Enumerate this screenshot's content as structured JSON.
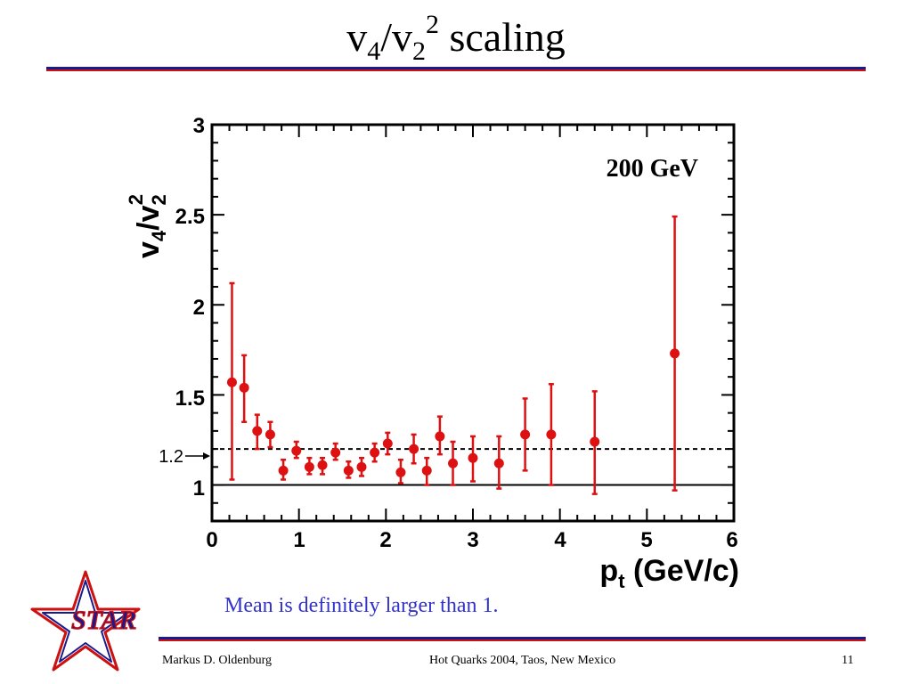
{
  "slide": {
    "title_main": "v",
    "title_sub1": "4",
    "title_mid": "/v",
    "title_sub2": "2",
    "title_sup": "2",
    "title_tail": " scaling",
    "caption": "Mean is definitely larger than 1.",
    "footer_author": "Markus D. Oldenburg",
    "footer_event": "Hot Quarks 2004, Taos, New Mexico",
    "footer_page": "11",
    "logo_text": "STAR",
    "colors": {
      "rule_blue": "#1a1a8c",
      "rule_red": "#cc1111",
      "caption": "#3333cc",
      "data": "#dd1111"
    }
  },
  "chart_data": {
    "type": "scatter",
    "annotation": "200 GeV",
    "reference_label": "1.2",
    "xlabel_main": "p",
    "xlabel_sub": "t",
    "xlabel_tail": " (GeV/c)",
    "ylabel_main": "v",
    "ylabel_sub1": "4",
    "ylabel_mid": "/v",
    "ylabel_sub2": "2",
    "ylabel_sup": "2",
    "xlim": [
      0,
      6
    ],
    "ylim": [
      0.8,
      3.0
    ],
    "x_ticks": [
      0,
      1,
      2,
      3,
      4,
      5,
      6
    ],
    "y_ticks": [
      1,
      1.5,
      2,
      2.5,
      3
    ],
    "y_tick_labels": [
      "1",
      "1.5",
      "2",
      "2.5",
      "3"
    ],
    "reference_lines": [
      {
        "y": 1.0,
        "style": "solid"
      },
      {
        "y": 1.2,
        "style": "dashed"
      }
    ],
    "series": [
      {
        "marker": "filled-circle",
        "points": [
          {
            "x": 0.23,
            "y": 1.57,
            "lo": 1.03,
            "hi": 2.12
          },
          {
            "x": 0.37,
            "y": 1.54,
            "lo": 1.35,
            "hi": 1.72
          },
          {
            "x": 0.52,
            "y": 1.3,
            "lo": 1.2,
            "hi": 1.39
          },
          {
            "x": 0.67,
            "y": 1.28,
            "lo": 1.21,
            "hi": 1.35
          },
          {
            "x": 0.82,
            "y": 1.08,
            "lo": 1.03,
            "hi": 1.14
          },
          {
            "x": 0.97,
            "y": 1.19,
            "lo": 1.15,
            "hi": 1.24
          },
          {
            "x": 1.12,
            "y": 1.1,
            "lo": 1.06,
            "hi": 1.15
          },
          {
            "x": 1.27,
            "y": 1.11,
            "lo": 1.06,
            "hi": 1.15
          },
          {
            "x": 1.42,
            "y": 1.18,
            "lo": 1.14,
            "hi": 1.23
          },
          {
            "x": 1.57,
            "y": 1.08,
            "lo": 1.04,
            "hi": 1.13
          },
          {
            "x": 1.72,
            "y": 1.1,
            "lo": 1.05,
            "hi": 1.15
          },
          {
            "x": 1.87,
            "y": 1.18,
            "lo": 1.13,
            "hi": 1.23
          },
          {
            "x": 2.02,
            "y": 1.23,
            "lo": 1.17,
            "hi": 1.29
          },
          {
            "x": 2.17,
            "y": 1.07,
            "lo": 1.01,
            "hi": 1.14
          },
          {
            "x": 2.32,
            "y": 1.2,
            "lo": 1.12,
            "hi": 1.28
          },
          {
            "x": 2.47,
            "y": 1.08,
            "lo": 1.0,
            "hi": 1.15
          },
          {
            "x": 2.62,
            "y": 1.27,
            "lo": 1.17,
            "hi": 1.38
          },
          {
            "x": 2.77,
            "y": 1.12,
            "lo": 1.0,
            "hi": 1.24
          },
          {
            "x": 3.0,
            "y": 1.15,
            "lo": 1.02,
            "hi": 1.27
          },
          {
            "x": 3.3,
            "y": 1.12,
            "lo": 0.98,
            "hi": 1.27
          },
          {
            "x": 3.6,
            "y": 1.28,
            "lo": 1.08,
            "hi": 1.48
          },
          {
            "x": 3.9,
            "y": 1.28,
            "lo": 1.0,
            "hi": 1.56
          },
          {
            "x": 4.4,
            "y": 1.24,
            "lo": 0.95,
            "hi": 1.52
          },
          {
            "x": 5.32,
            "y": 1.73,
            "lo": 0.97,
            "hi": 2.49
          }
        ]
      }
    ]
  }
}
